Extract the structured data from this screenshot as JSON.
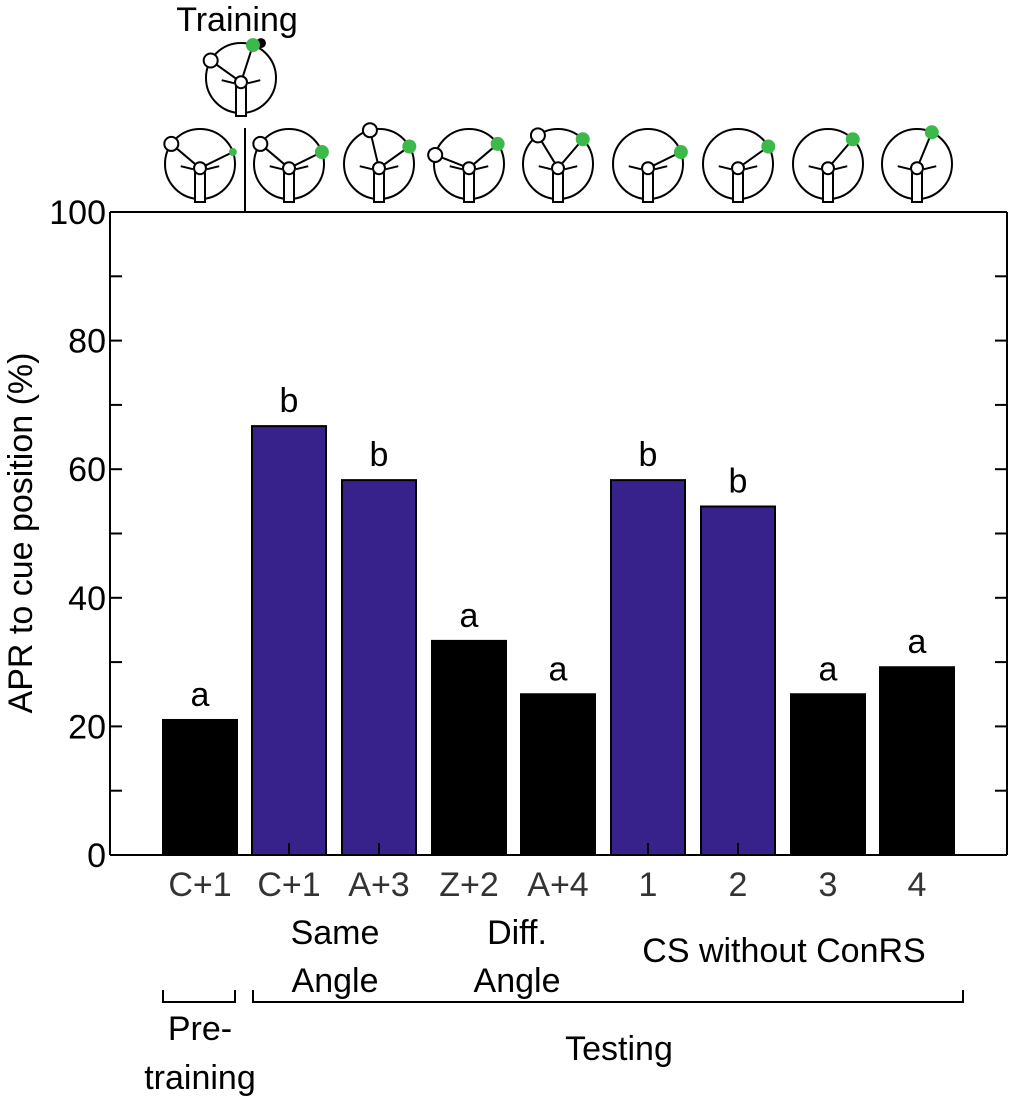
{
  "chart_data": {
    "type": "bar",
    "top_label": "Training",
    "ylabel": "APR to cue position (%)",
    "ylim": [
      0,
      100
    ],
    "yticks": [
      "0",
      "20",
      "40",
      "60",
      "80",
      "100"
    ],
    "categories": [
      "C+1",
      "C+1",
      "A+3",
      "Z+2",
      "A+4",
      "1",
      "2",
      "3",
      "4"
    ],
    "values": [
      21,
      66.7,
      58.3,
      33.3,
      25,
      58.3,
      54.2,
      25,
      29.2
    ],
    "significance": [
      "a",
      "b",
      "b",
      "a",
      "a",
      "b",
      "b",
      "a",
      "a"
    ],
    "bar_colors": [
      "#000000",
      "#37218b",
      "#37218b",
      "#000000",
      "#000000",
      "#37218b",
      "#37218b",
      "#000000",
      "#000000"
    ],
    "group_labels": {
      "same_angle": [
        "Same",
        "Angle"
      ],
      "diff_angle": [
        "Diff.",
        "Angle"
      ],
      "cs_without": "CS without ConRS"
    },
    "phase_labels": {
      "pretraining": [
        "Pre-",
        "training"
      ],
      "testing": "Testing"
    },
    "colors": {
      "blue": "#37218b",
      "black": "#000000",
      "cue_green": "#3db84a"
    },
    "icons": {
      "training": {
        "open": 150,
        "green": 70,
        "black": true
      },
      "test": [
        {
          "open": 145,
          "green": 20,
          "small": true
        },
        {
          "open": 145,
          "green": 20
        },
        {
          "open": 105,
          "green": 30
        },
        {
          "open": 165,
          "green": 35
        },
        {
          "open": 125,
          "green": 45
        },
        {
          "open": null,
          "green": 20
        },
        {
          "open": null,
          "green": 30
        },
        {
          "open": null,
          "green": 45
        },
        {
          "open": null,
          "green": 65
        }
      ]
    }
  }
}
